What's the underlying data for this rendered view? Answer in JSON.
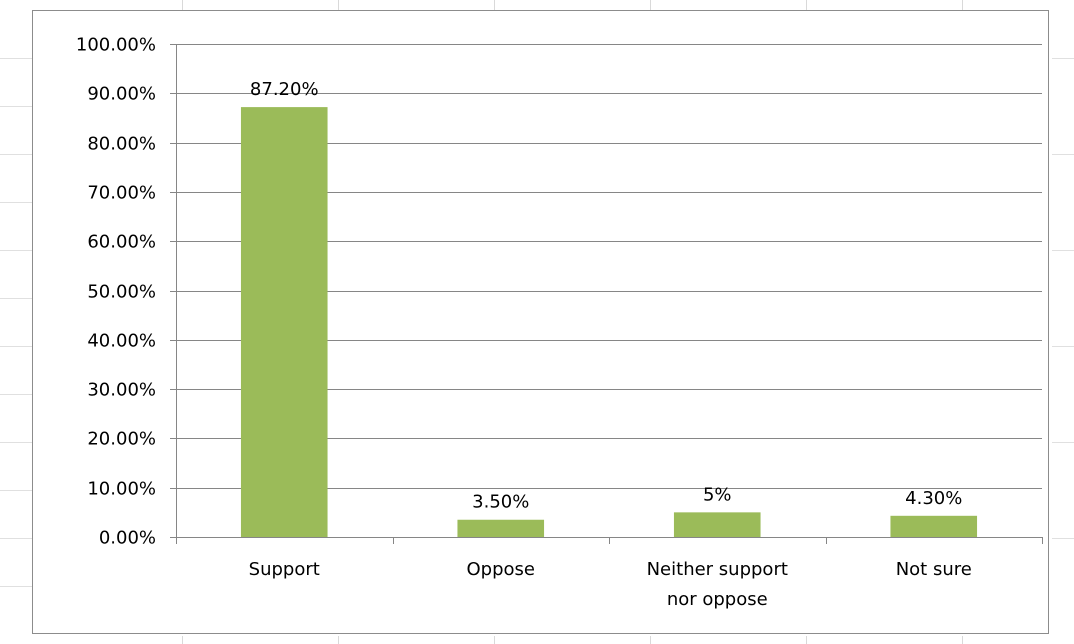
{
  "chart_data": {
    "type": "bar",
    "categories": [
      "Support",
      "Oppose",
      "Neither support nor oppose",
      "Not sure"
    ],
    "category_lines": [
      [
        "Support"
      ],
      [
        "Oppose"
      ],
      [
        "Neither support",
        "nor oppose"
      ],
      [
        "Not sure"
      ]
    ],
    "values": [
      87.2,
      3.5,
      5,
      4.3
    ],
    "data_labels": [
      "87.20%",
      "3.50%",
      "5%",
      "4.30%"
    ],
    "ylim": [
      0,
      100
    ],
    "y_ticks": [
      0,
      10,
      20,
      30,
      40,
      50,
      60,
      70,
      80,
      90,
      100
    ],
    "y_tick_labels": [
      "0.00%",
      "10.00%",
      "20.00%",
      "30.00%",
      "40.00%",
      "50.00%",
      "60.00%",
      "70.00%",
      "80.00%",
      "90.00%",
      "100.00%"
    ],
    "grid": true,
    "legend": "none",
    "bar_color": "#9bbb59",
    "title": "",
    "xlabel": "",
    "ylabel": ""
  },
  "colors": {
    "gridline": "#868686",
    "axis": "#868686",
    "frame": "#8c8c8c"
  }
}
